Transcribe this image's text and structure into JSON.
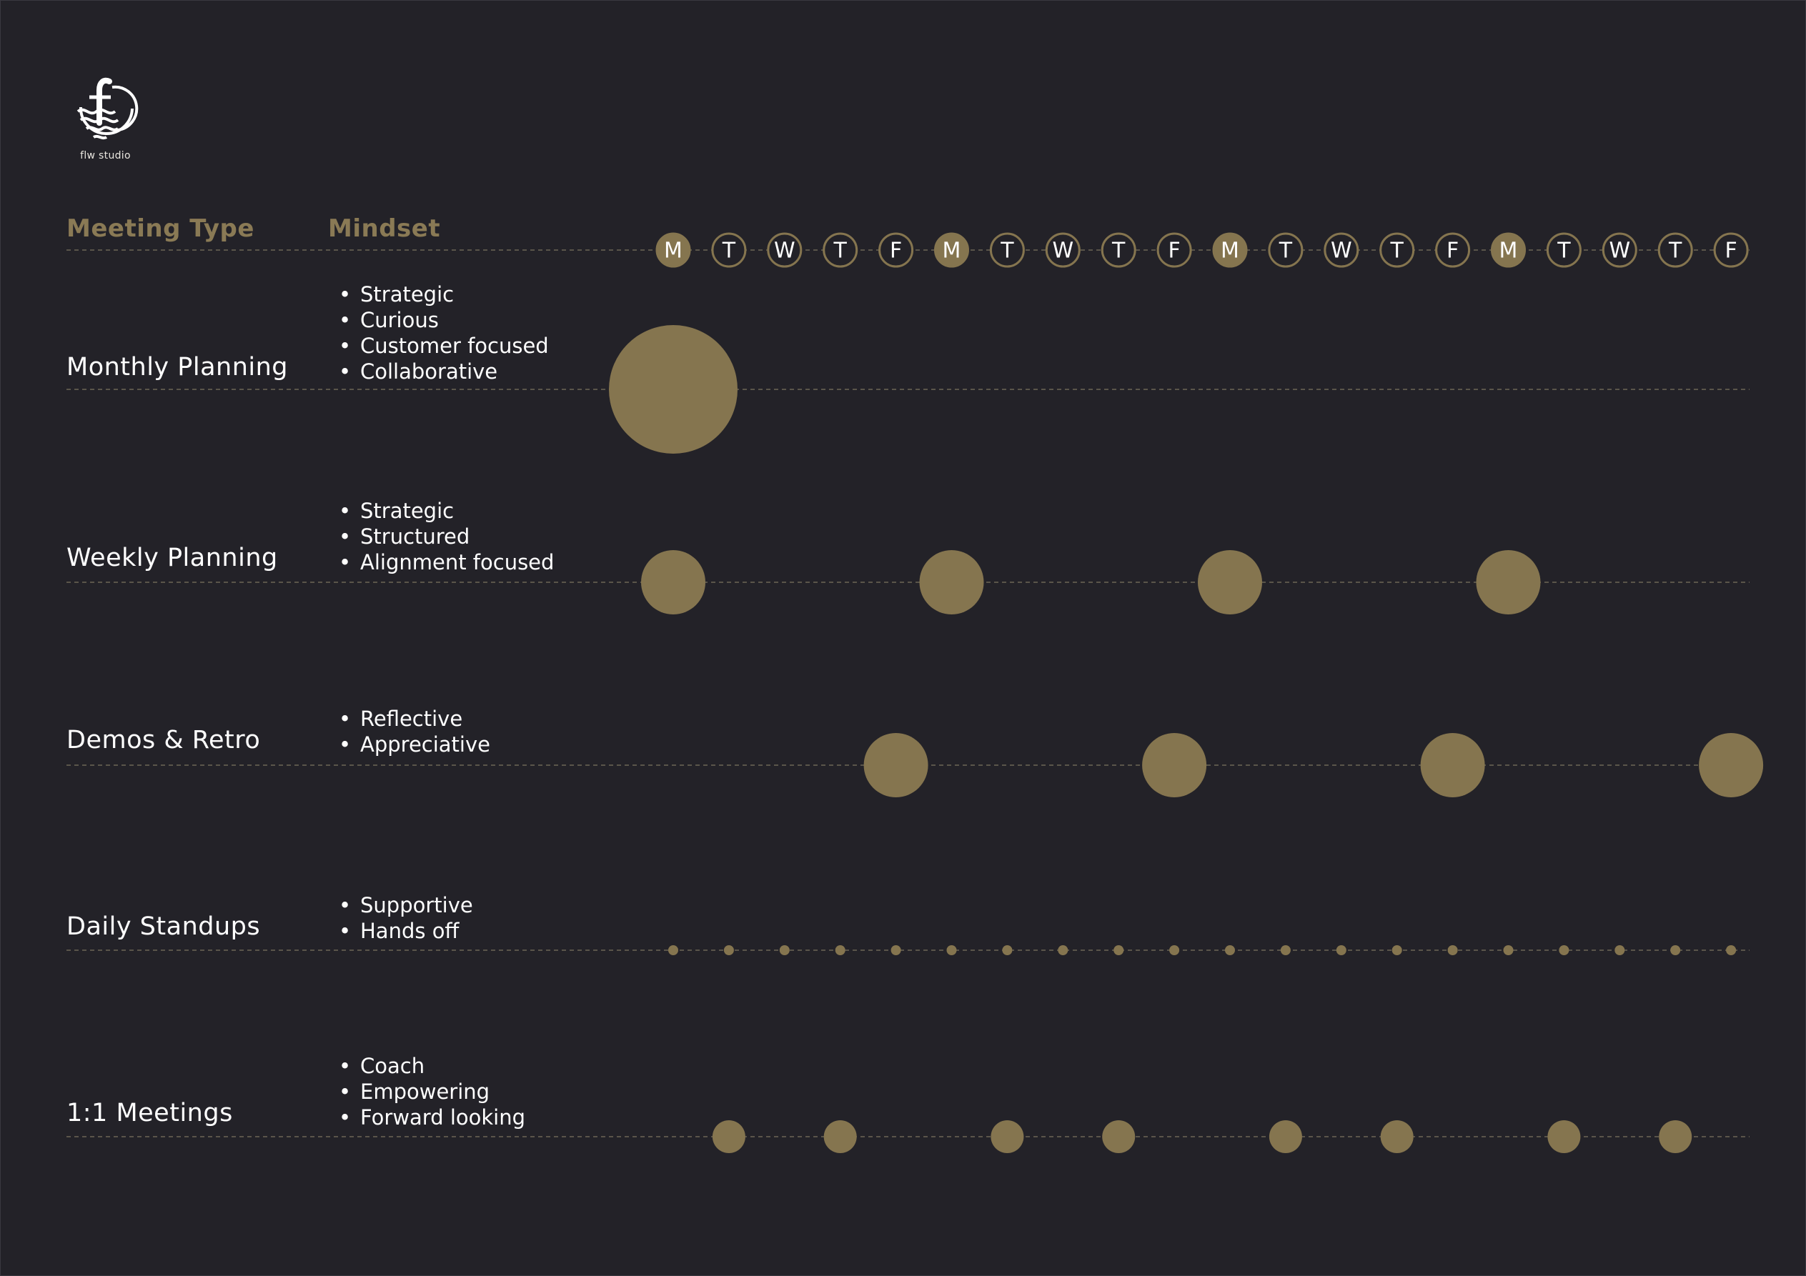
{
  "colors": {
    "background": "#232228",
    "accent": "#85754f",
    "accent_text": "#8a7a55",
    "text": "#ffffff",
    "guide_line": "#5a554a"
  },
  "logo": {
    "icon": "flw-studio-logo-icon",
    "text": "flw studio"
  },
  "headers": {
    "meeting_type": "Meeting Type",
    "mindset": "Mindset"
  },
  "days": [
    {
      "letter": "M",
      "highlight": true
    },
    {
      "letter": "T",
      "highlight": false
    },
    {
      "letter": "W",
      "highlight": false
    },
    {
      "letter": "T",
      "highlight": false
    },
    {
      "letter": "F",
      "highlight": false
    },
    {
      "letter": "M",
      "highlight": true
    },
    {
      "letter": "T",
      "highlight": false
    },
    {
      "letter": "W",
      "highlight": false
    },
    {
      "letter": "T",
      "highlight": false
    },
    {
      "letter": "F",
      "highlight": false
    },
    {
      "letter": "M",
      "highlight": true
    },
    {
      "letter": "T",
      "highlight": false
    },
    {
      "letter": "W",
      "highlight": false
    },
    {
      "letter": "T",
      "highlight": false
    },
    {
      "letter": "F",
      "highlight": false
    },
    {
      "letter": "M",
      "highlight": true
    },
    {
      "letter": "T",
      "highlight": false
    },
    {
      "letter": "W",
      "highlight": false
    },
    {
      "letter": "T",
      "highlight": false
    },
    {
      "letter": "F",
      "highlight": false
    }
  ],
  "rows": [
    {
      "title": "Monthly Planning",
      "mindset": [
        "Strategic",
        "Curious",
        "Customer focused",
        "Collaborative"
      ],
      "size": "xl",
      "days": [
        0
      ]
    },
    {
      "title": "Weekly Planning",
      "mindset": [
        "Strategic",
        "Structured",
        "Alignment focused"
      ],
      "size": "lg",
      "days": [
        0,
        5,
        10,
        15
      ]
    },
    {
      "title": "Demos & Retro",
      "mindset": [
        "Reflective",
        "Appreciative"
      ],
      "size": "lg",
      "days": [
        4,
        9,
        14,
        19
      ]
    },
    {
      "title": "Daily Standups",
      "mindset": [
        "Supportive",
        "Hands off"
      ],
      "size": "xs",
      "days": [
        0,
        1,
        2,
        3,
        4,
        5,
        6,
        7,
        8,
        9,
        10,
        11,
        12,
        13,
        14,
        15,
        16,
        17,
        18,
        19
      ]
    },
    {
      "title": "1:1 Meetings",
      "mindset": [
        "Coach",
        "Empowering",
        "Forward looking"
      ],
      "size": "md",
      "days": [
        1,
        3,
        6,
        8,
        11,
        13,
        16,
        18
      ]
    }
  ]
}
